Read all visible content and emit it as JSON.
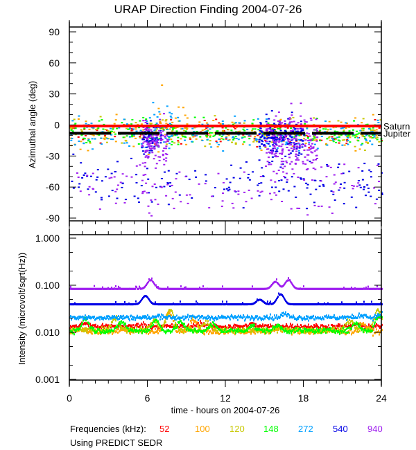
{
  "title": "URAP Direction Finding  2004-07-26",
  "xlabel": "time - hours on 2004-07-26",
  "legend_label": "Frequencies (kHz):",
  "footnote": "Using PREDICT SEDR",
  "chart_data": [
    {
      "type": "scatter",
      "name": "azimuth-panel",
      "ylabel": "Azimuthal angle (deg)",
      "xlim": [
        0,
        24
      ],
      "ylim": [
        -90,
        90
      ],
      "xticks": [
        "0",
        "6",
        "12",
        "18",
        "24"
      ],
      "yticks": [
        {
          "value": 90,
          "label": "90"
        },
        {
          "value": 60,
          "label": "60"
        },
        {
          "value": 30,
          "label": "30"
        },
        {
          "value": 0,
          "label": "0"
        },
        {
          "value": -30,
          "label": "-30"
        },
        {
          "value": -60,
          "label": "-60"
        },
        {
          "value": -90,
          "label": "-90"
        }
      ],
      "reference_lines": [
        {
          "label": "Saturn",
          "value": -1,
          "color": "#ff0000"
        },
        {
          "label": "Jupiter",
          "value": -8,
          "color": "#000000"
        }
      ],
      "series": [
        {
          "name": "52",
          "color": "#ff0000",
          "clusters": [
            {
              "x": [
                0,
                24
              ],
              "y": -8,
              "spread": 6,
              "n": 120
            }
          ]
        },
        {
          "name": "100",
          "color": "#ffa500",
          "clusters": [
            {
              "x": [
                0,
                24
              ],
              "y": -6,
              "spread": 8,
              "n": 160
            },
            {
              "x": [
                6,
                9
              ],
              "y": 2,
              "spread": 14,
              "n": 20
            }
          ]
        },
        {
          "name": "120",
          "color": "#c8c800",
          "clusters": [
            {
              "x": [
                0,
                24
              ],
              "y": -6,
              "spread": 7,
              "n": 160
            }
          ]
        },
        {
          "name": "148",
          "color": "#00ff00",
          "clusters": [
            {
              "x": [
                0,
                24
              ],
              "y": -7,
              "spread": 6,
              "n": 220
            }
          ]
        },
        {
          "name": "272",
          "color": "#00a0ff",
          "clusters": [
            {
              "x": [
                0,
                24
              ],
              "y": -8,
              "spread": 7,
              "n": 200
            },
            {
              "x": [
                6,
                8
              ],
              "y": 5,
              "spread": 12,
              "n": 20
            }
          ]
        },
        {
          "name": "540",
          "color": "#0000e6",
          "clusters": [
            {
              "x": [
                0,
                24
              ],
              "y": -55,
              "spread": 12,
              "n": 160
            },
            {
              "x": [
                5.5,
                7
              ],
              "y": -12,
              "spread": 8,
              "n": 60
            },
            {
              "x": [
                14.5,
                18
              ],
              "y": -12,
              "spread": 9,
              "n": 160
            }
          ]
        },
        {
          "name": "940",
          "color": "#a020f0",
          "clusters": [
            {
              "x": [
                0,
                24
              ],
              "y": -58,
              "spread": 12,
              "n": 120
            },
            {
              "x": [
                5.5,
                7.5
              ],
              "y": -18,
              "spread": 12,
              "n": 120
            },
            {
              "x": [
                15,
                19
              ],
              "y": -18,
              "spread": 14,
              "n": 220
            }
          ]
        }
      ]
    },
    {
      "type": "line",
      "name": "intensity-panel",
      "ylabel": "Intensity (microvolt/sqrt(Hz))",
      "xlabel": "time - hours on 2004-07-26",
      "xlim": [
        0,
        24
      ],
      "ylim": [
        0.001,
        1.0
      ],
      "yscale": "log",
      "xticks": [
        "0",
        "6",
        "12",
        "18",
        "24"
      ],
      "yticks": [
        {
          "value": 1.0,
          "label": "1.000"
        },
        {
          "value": 0.1,
          "label": "0.100"
        },
        {
          "value": 0.01,
          "label": "0.010"
        },
        {
          "value": 0.001,
          "label": "0.001"
        }
      ],
      "series": [
        {
          "name": "52",
          "color": "#ff0000",
          "base": 0.0135,
          "peaks": [
            [
              1.2,
              0.016
            ],
            [
              5.5,
              0.015
            ],
            [
              10,
              0.016
            ],
            [
              14,
              0.015
            ],
            [
              17,
              0.014
            ],
            [
              22,
              0.015
            ]
          ]
        },
        {
          "name": "100",
          "color": "#ffa500",
          "base": 0.0105,
          "peaks": [
            [
              1,
              0.012
            ],
            [
              4,
              0.0115
            ],
            [
              7.6,
              0.027
            ],
            [
              9.5,
              0.019
            ],
            [
              16,
              0.013
            ],
            [
              22.5,
              0.016
            ]
          ]
        },
        {
          "name": "120",
          "color": "#c8c800",
          "base": 0.0115,
          "peaks": [
            [
              3.5,
              0.02
            ],
            [
              6.5,
              0.018
            ],
            [
              7.7,
              0.03
            ],
            [
              10.5,
              0.017
            ],
            [
              21.5,
              0.018
            ],
            [
              23.7,
              0.03
            ]
          ]
        },
        {
          "name": "148",
          "color": "#00ff00",
          "base": 0.011,
          "peaks": [
            [
              1.2,
              0.02
            ],
            [
              4,
              0.017
            ],
            [
              6.6,
              0.018
            ],
            [
              8.5,
              0.017
            ],
            [
              11,
              0.015
            ],
            [
              14,
              0.014
            ],
            [
              16,
              0.014
            ],
            [
              22,
              0.016
            ],
            [
              23.8,
              0.024
            ]
          ]
        },
        {
          "name": "272",
          "color": "#00a0ff",
          "base": 0.021,
          "peaks": [
            [
              7,
              0.023
            ],
            [
              15,
              0.022
            ],
            [
              16.5,
              0.025
            ],
            [
              22.5,
              0.024
            ],
            [
              24,
              0.026
            ]
          ]
        },
        {
          "name": "540",
          "color": "#0000e6",
          "base": 0.04,
          "peaks": [
            [
              5.8,
              0.06
            ],
            [
              14.6,
              0.05
            ],
            [
              16.2,
              0.065
            ]
          ]
        },
        {
          "name": "940",
          "color": "#a020f0",
          "base": 0.085,
          "peaks": [
            [
              6.2,
              0.13
            ],
            [
              15.8,
              0.12
            ],
            [
              16.8,
              0.13
            ]
          ]
        }
      ]
    }
  ]
}
